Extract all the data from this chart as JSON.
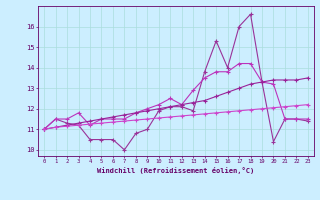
{
  "x": [
    0,
    1,
    2,
    3,
    4,
    5,
    6,
    7,
    8,
    9,
    10,
    11,
    12,
    13,
    14,
    15,
    16,
    17,
    18,
    19,
    20,
    21,
    22,
    23
  ],
  "line1": [
    11.0,
    11.5,
    11.3,
    11.2,
    10.5,
    10.5,
    10.5,
    10.0,
    10.8,
    11.0,
    11.9,
    12.1,
    12.1,
    11.9,
    13.8,
    15.3,
    14.0,
    16.0,
    16.6,
    13.3,
    10.4,
    11.5,
    11.5,
    11.4
  ],
  "line2": [
    11.0,
    11.5,
    11.5,
    11.8,
    11.2,
    11.5,
    11.5,
    11.5,
    11.8,
    12.0,
    12.2,
    12.5,
    12.2,
    12.9,
    13.5,
    13.8,
    13.8,
    14.2,
    14.2,
    13.3,
    13.2,
    11.5,
    11.5,
    11.5
  ],
  "line3": [
    11.0,
    11.1,
    11.2,
    11.3,
    11.4,
    11.5,
    11.6,
    11.7,
    11.8,
    11.9,
    12.0,
    12.1,
    12.2,
    12.3,
    12.4,
    12.6,
    12.8,
    13.0,
    13.2,
    13.3,
    13.4,
    13.4,
    13.4,
    13.5
  ],
  "line4": [
    11.0,
    11.1,
    11.15,
    11.2,
    11.25,
    11.3,
    11.35,
    11.4,
    11.45,
    11.5,
    11.55,
    11.6,
    11.65,
    11.7,
    11.75,
    11.8,
    11.85,
    11.9,
    11.95,
    12.0,
    12.05,
    12.1,
    12.15,
    12.2
  ],
  "color1": "#993399",
  "color2": "#bb33bb",
  "color3": "#992299",
  "color4": "#cc44cc",
  "bg_color": "#cceeff",
  "grid_color": "#aadddd",
  "text_color": "#660066",
  "xlabel": "Windchill (Refroidissement éolien,°C)",
  "xlim": [
    -0.5,
    23.5
  ],
  "ylim": [
    9.7,
    17.0
  ],
  "yticks": [
    10,
    11,
    12,
    13,
    14,
    15,
    16
  ],
  "xticks": [
    0,
    1,
    2,
    3,
    4,
    5,
    6,
    7,
    8,
    9,
    10,
    11,
    12,
    13,
    14,
    15,
    16,
    17,
    18,
    19,
    20,
    21,
    22,
    23
  ],
  "marker": "+"
}
